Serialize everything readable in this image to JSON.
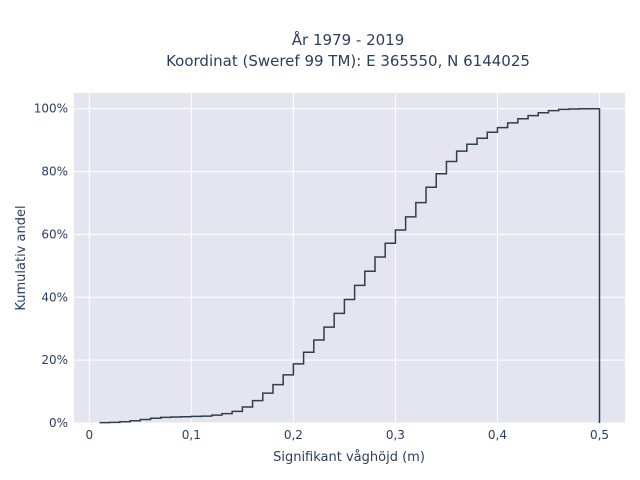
{
  "chart_data": {
    "type": "line",
    "line_shape": "step",
    "title_lines": [
      "År 1979 - 2019",
      "Koordinat (Sweref 99 TM): E 365550, N 6144025"
    ],
    "xlabel": "Signifikant våghöjd (m)",
    "ylabel": "Kumulativ andel",
    "xlim": [
      -0.015,
      0.525
    ],
    "ylim": [
      0,
      1.05
    ],
    "x_ticks": [
      {
        "value": 0,
        "label": "0"
      },
      {
        "value": 0.1,
        "label": "0,1"
      },
      {
        "value": 0.2,
        "label": "0,2"
      },
      {
        "value": 0.3,
        "label": "0,3"
      },
      {
        "value": 0.4,
        "label": "0,4"
      },
      {
        "value": 0.5,
        "label": "0,5"
      }
    ],
    "y_ticks": [
      {
        "value": 0,
        "label": "0%"
      },
      {
        "value": 0.2,
        "label": "20%"
      },
      {
        "value": 0.4,
        "label": "40%"
      },
      {
        "value": 0.6,
        "label": "60%"
      },
      {
        "value": 0.8,
        "label": "80%"
      },
      {
        "value": 1.0,
        "label": "100%"
      }
    ],
    "grid": true,
    "background_color": "#e5e5f0",
    "line_color": "#2f3d4c",
    "series": [
      {
        "x": [
          0.01,
          0.02,
          0.03,
          0.04,
          0.05,
          0.06,
          0.07,
          0.08,
          0.09,
          0.1,
          0.11,
          0.12,
          0.13,
          0.14,
          0.15,
          0.16,
          0.17,
          0.18,
          0.19,
          0.2,
          0.21,
          0.22,
          0.23,
          0.24,
          0.25,
          0.26,
          0.27,
          0.28,
          0.29,
          0.3,
          0.31,
          0.32,
          0.33,
          0.34,
          0.35,
          0.36,
          0.37,
          0.38,
          0.39,
          0.4,
          0.41,
          0.42,
          0.43,
          0.44,
          0.45,
          0.46,
          0.47,
          0.48,
          0.49,
          0.5
        ],
        "y": [
          0.001,
          0.002,
          0.004,
          0.007,
          0.011,
          0.015,
          0.018,
          0.019,
          0.02,
          0.021,
          0.022,
          0.025,
          0.03,
          0.037,
          0.051,
          0.071,
          0.095,
          0.122,
          0.153,
          0.188,
          0.225,
          0.264,
          0.305,
          0.349,
          0.393,
          0.438,
          0.483,
          0.528,
          0.572,
          0.614,
          0.656,
          0.701,
          0.75,
          0.793,
          0.832,
          0.865,
          0.887,
          0.906,
          0.925,
          0.94,
          0.955,
          0.968,
          0.978,
          0.987,
          0.994,
          0.998,
          0.999,
          1.0,
          1.0,
          0.0
        ]
      }
    ]
  }
}
